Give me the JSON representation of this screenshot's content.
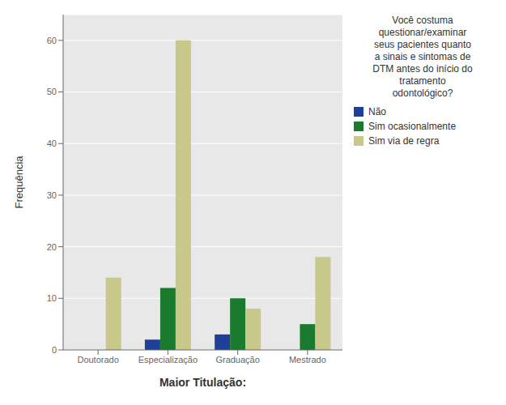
{
  "chart_data": {
    "type": "bar",
    "categories": [
      "Doutorado",
      "Especialização",
      "Graduação",
      "Mestrado"
    ],
    "series": [
      {
        "name": "Não",
        "color": "#1f3f99",
        "values": [
          0,
          2,
          3,
          0
        ]
      },
      {
        "name": "Sim ocasionalmente",
        "color": "#1a7a2e",
        "values": [
          0,
          12,
          10,
          5
        ]
      },
      {
        "name": "Sim via de regra",
        "color": "#c8c88a",
        "values": [
          14,
          60,
          8,
          18
        ]
      }
    ],
    "xlabel": "Maior Titulação:",
    "ylabel": "Frequência",
    "ylim": [
      0,
      65
    ],
    "yticks": [
      0,
      10,
      20,
      30,
      40,
      50,
      60
    ],
    "grid": true,
    "legend": "right",
    "legend_title": "Você costuma\nquestionar/examinar\nseus pacientes quanto\na sinais e sintomas de\nDTM antes do início do\ntratamento\nodontológico?"
  }
}
